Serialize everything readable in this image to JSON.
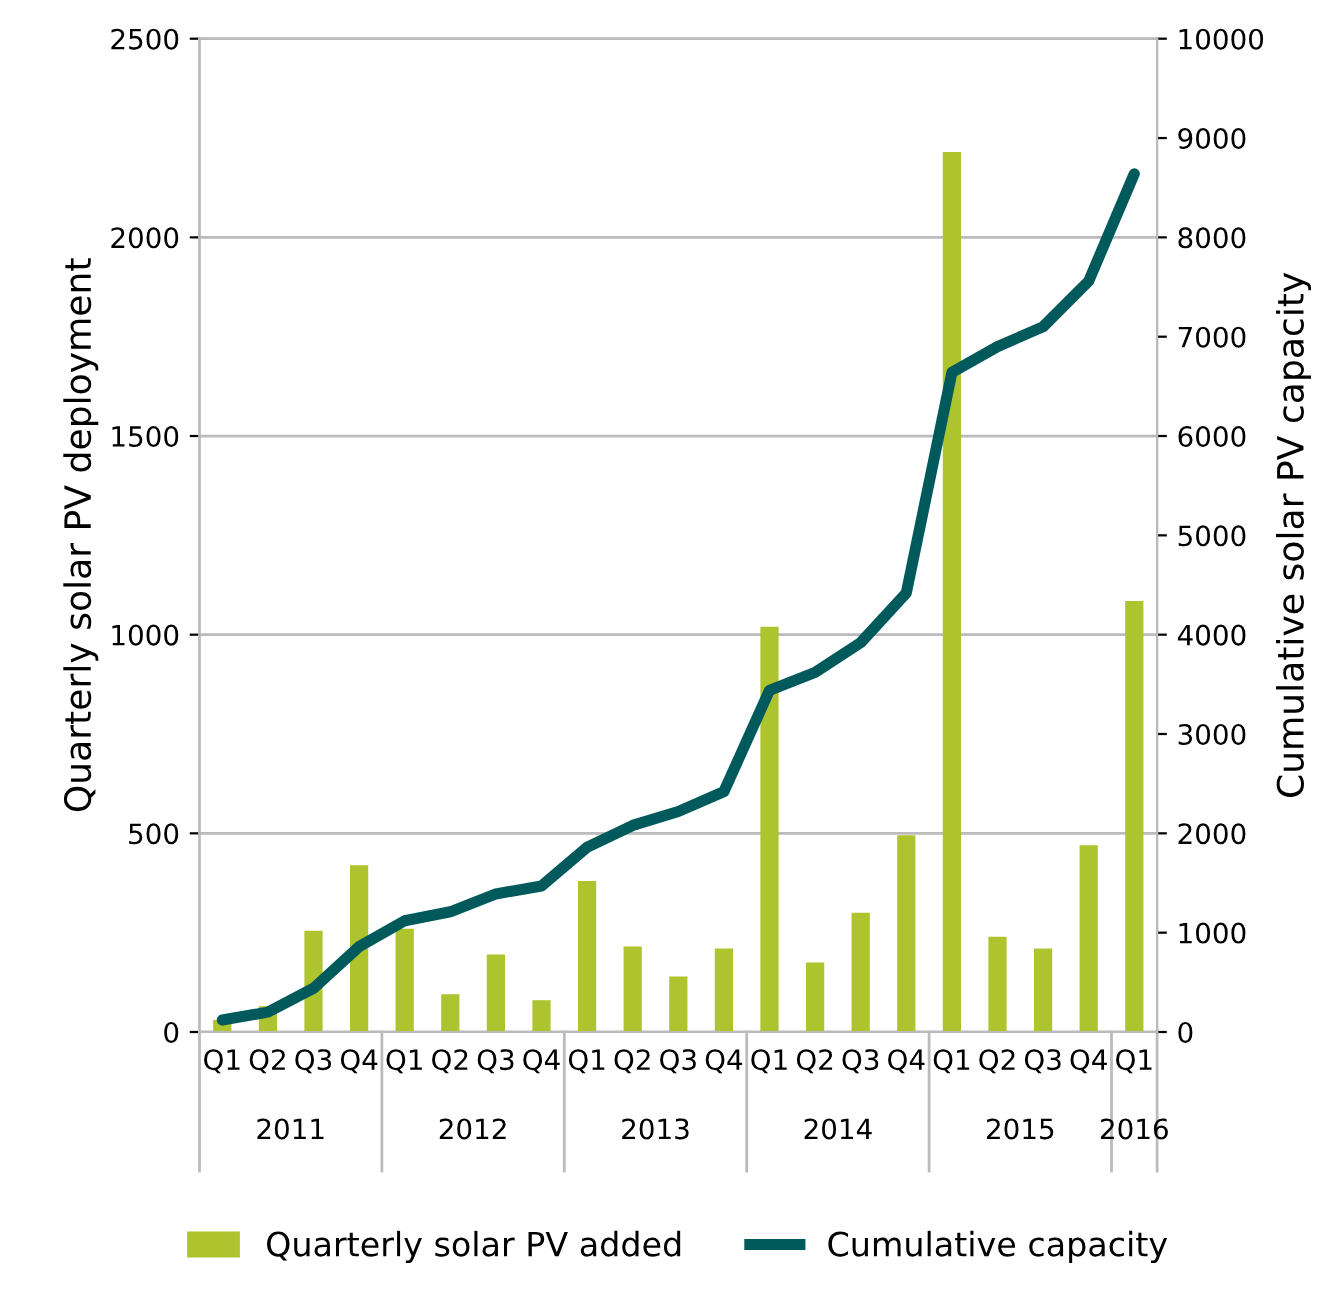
{
  "chart_data": {
    "type": "bar",
    "ylabel": "Quarterly solar PV deployment",
    "y2label": "Cumulative solar PV capacity",
    "categories": [
      "Q1",
      "Q2",
      "Q3",
      "Q4",
      "Q1",
      "Q2",
      "Q3",
      "Q4",
      "Q1",
      "Q2",
      "Q3",
      "Q4",
      "Q1",
      "Q2",
      "Q3",
      "Q4",
      "Q1",
      "Q2",
      "Q3",
      "Q4",
      "Q1"
    ],
    "series": [
      {
        "name": "Quarterly solar PV added",
        "color": "#aec42f",
        "values": [
          30,
          65,
          255,
          420,
          260,
          95,
          195,
          80,
          380,
          215,
          140,
          210,
          1020,
          175,
          300,
          495,
          2215,
          240,
          210,
          470,
          1085
        ]
      },
      {
        "name": "Cumulative capacity",
        "type": "line",
        "axis": "y2",
        "color": "#005a5b",
        "values": [
          120,
          200,
          440,
          860,
          1120,
          1210,
          1390,
          1470,
          1860,
          2080,
          2220,
          2420,
          3440,
          3620,
          3920,
          4420,
          6640,
          6900,
          7100,
          7560,
          8640
        ]
      }
    ],
    "ylim": [
      0,
      2500
    ],
    "yticks": [
      0,
      500,
      1000,
      1500,
      2000,
      2500
    ],
    "y2lim": [
      0,
      10000
    ],
    "y2ticks": [
      0,
      1000,
      2000,
      3000,
      4000,
      5000,
      6000,
      7000,
      8000,
      9000,
      10000
    ],
    "annotations": [
      "2011",
      "2012",
      "2013",
      "2014",
      "2015",
      "2016"
    ],
    "grid": "y",
    "legend": "bottom"
  }
}
